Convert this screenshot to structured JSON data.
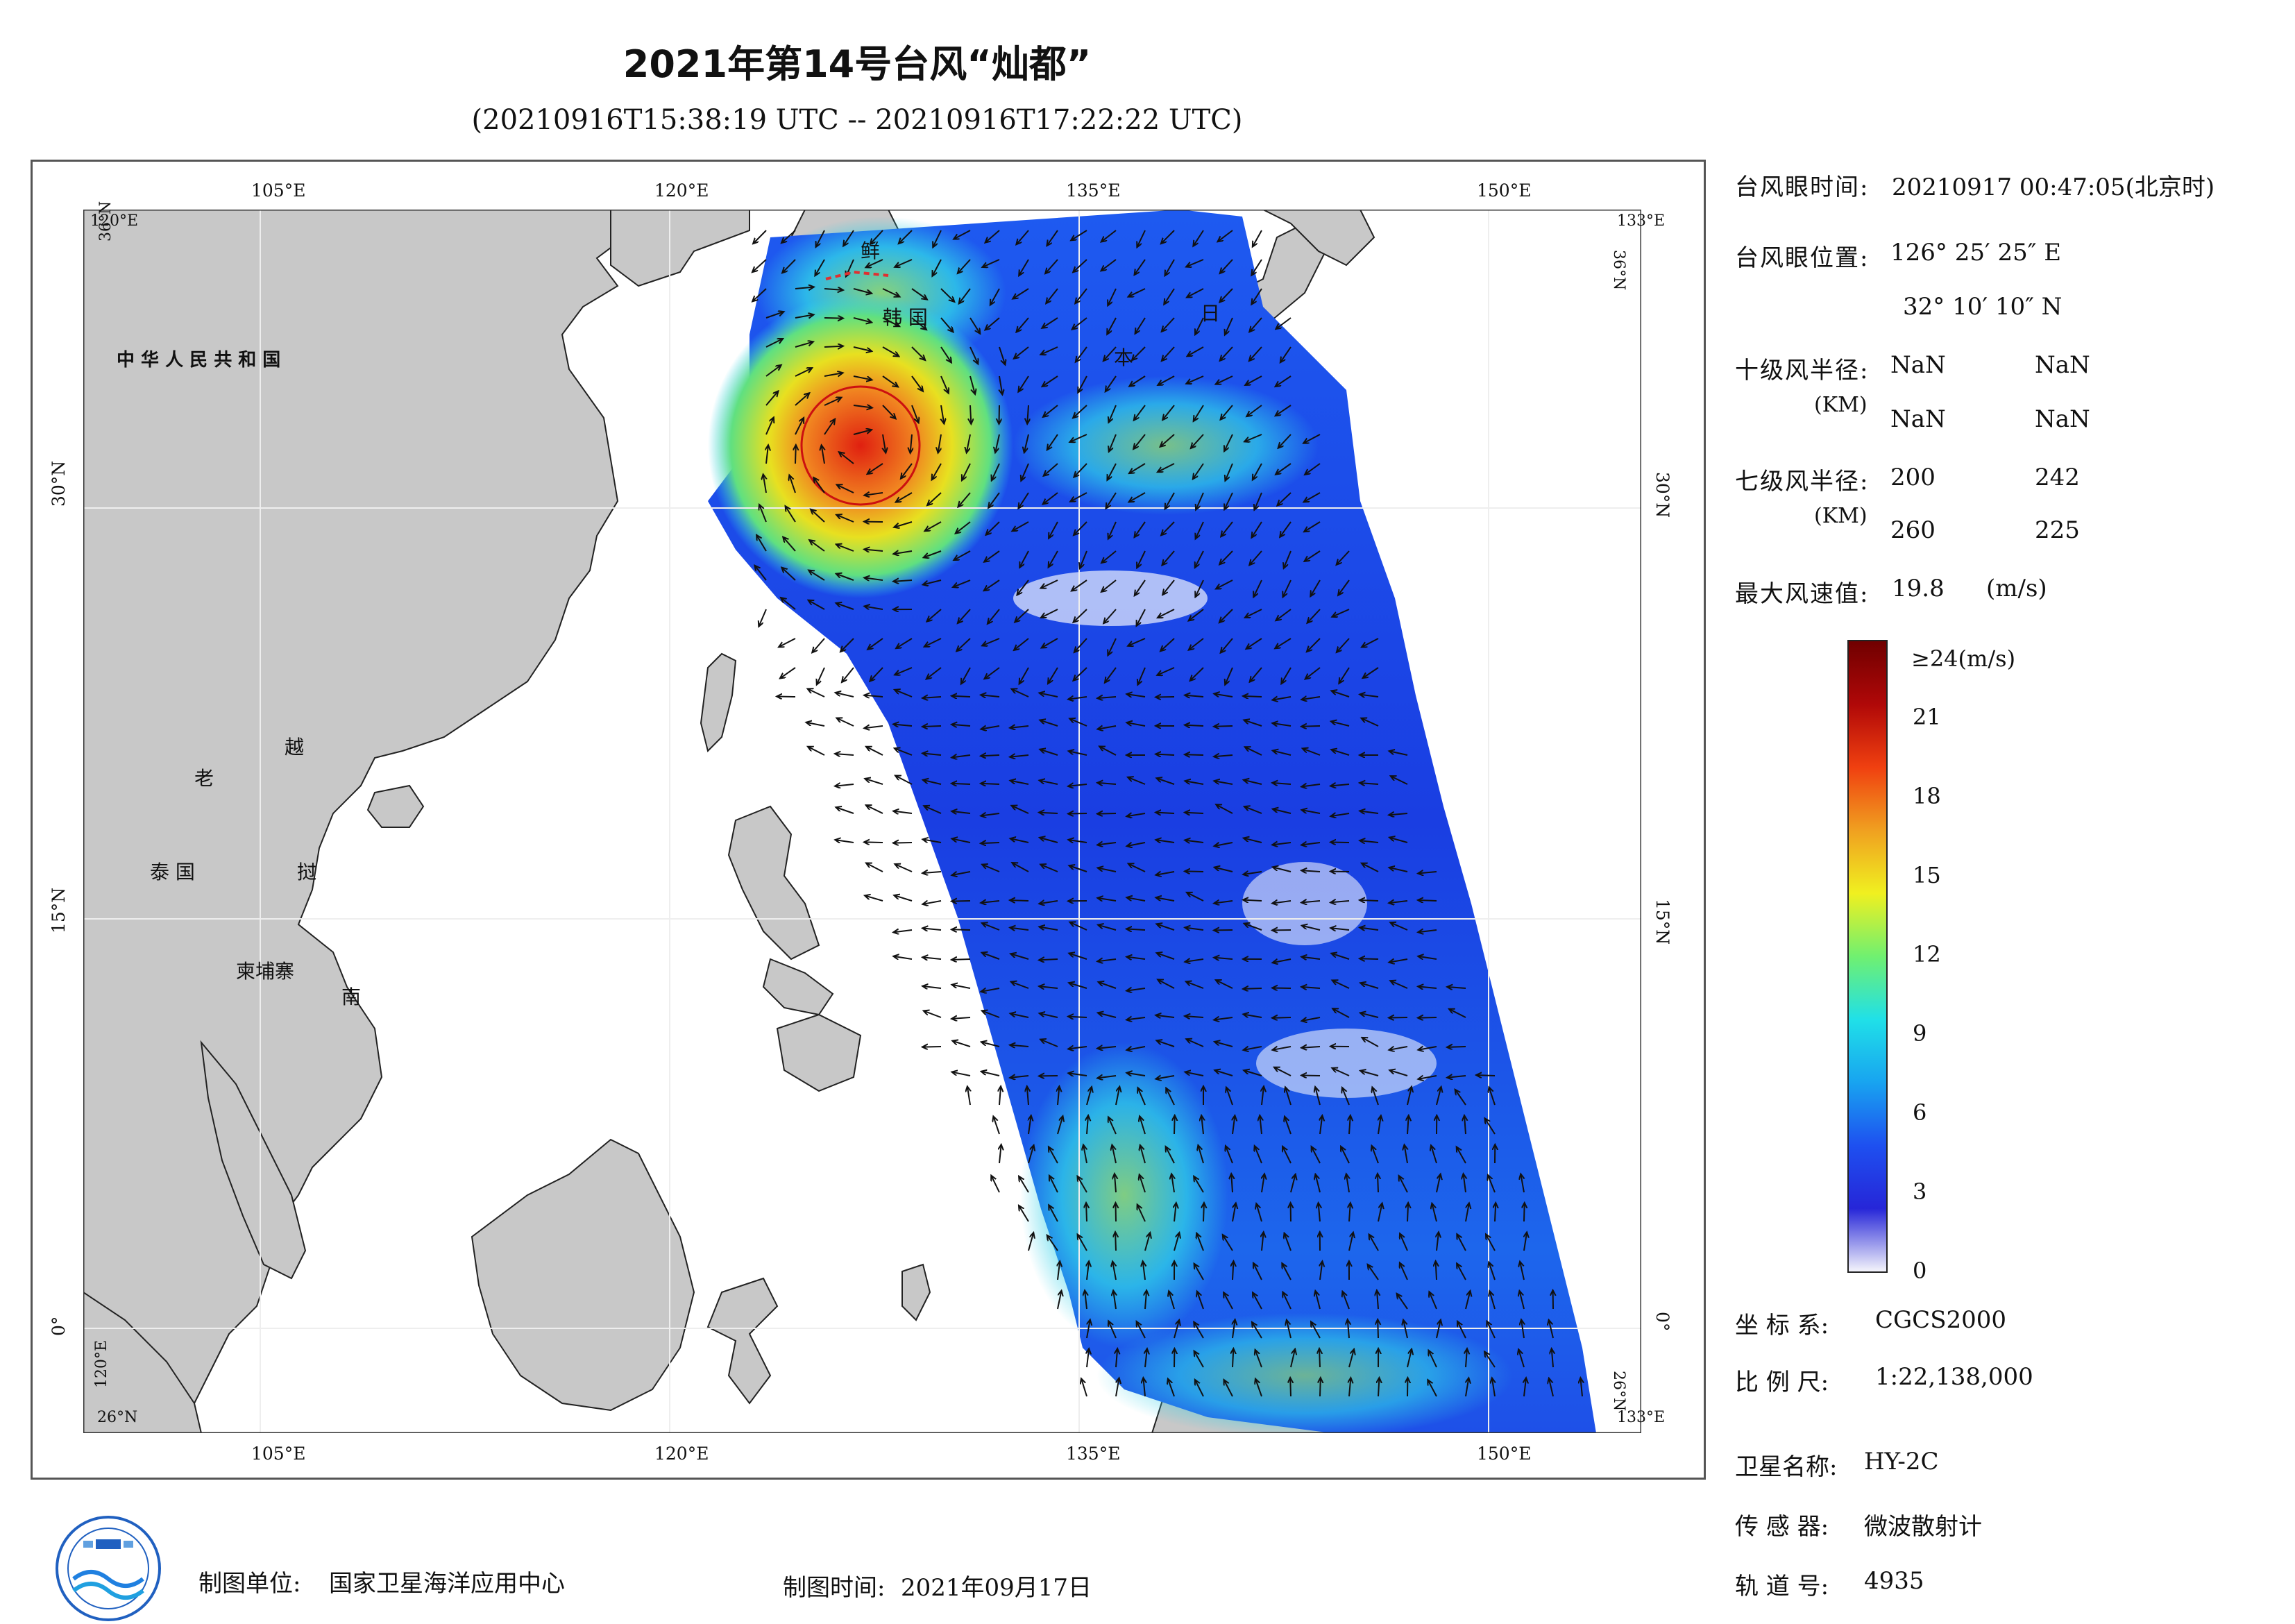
{
  "header": {
    "title": "2021年第14号台风“灿都”",
    "subtitle": "(20210916T15:38:19 UTC -- 20210916T17:22:22 UTC)"
  },
  "map": {
    "lon_top": [
      "105°E",
      "120°E",
      "135°E",
      "150°E"
    ],
    "lon_bottom": [
      "105°E",
      "120°E",
      "135°E",
      "150°E"
    ],
    "lat_left": [
      "30°N",
      "15°N",
      "0°"
    ],
    "lat_right": [
      "30°N",
      "15°N",
      "0°"
    ],
    "corner_labels": {
      "tl_lon": "120°E",
      "tl_lat": "36°N",
      "tr_lon": "133°E",
      "tr_lat": "36°N",
      "bl_lon": "120°E",
      "bl_lat": "26°N",
      "br_lon": "133°E",
      "br_lat": "26°N"
    },
    "place_names": {
      "china": "中 华 人 民 共 和 国",
      "korea_n": "鲜",
      "korea_s": "韩 国",
      "japan_1": "日",
      "japan_2": "本",
      "vietnam_1": "越",
      "vietnam_2": "南",
      "laos": "老",
      "thailand": "泰 国",
      "cambodia": "柬埔寨",
      "laos_2": "挝"
    },
    "typhoon_eye": {
      "lon": 126.42,
      "lat": 32.17
    },
    "colors": {
      "land": "#c8c8c8",
      "sea": "#ffffff",
      "swath_low": "#1438e0",
      "swath_high": "#d81010"
    }
  },
  "info": {
    "eye_time_label": "台风眼时间:",
    "eye_time_value": "20210917 00:47:05(北京时)",
    "eye_pos_label": "台风眼位置:",
    "eye_pos_lon": "126° 25′ 25″ E",
    "eye_pos_lat": "32° 10′ 10″ N",
    "r10_label": "十级风半径:",
    "r10_unit": "(KM)",
    "r10_values": [
      "NaN",
      "NaN",
      "NaN",
      "NaN"
    ],
    "r7_label": "七级风半径:",
    "r7_unit": "(KM)",
    "r7_values": [
      "200",
      "242",
      "260",
      "225"
    ],
    "max_wind_label": "最大风速值:",
    "max_wind_value": "19.8",
    "max_wind_unit": "(m/s)"
  },
  "colorbar": {
    "top_label": "≥24(m/s)",
    "ticks": [
      "21",
      "18",
      "15",
      "12",
      "9",
      "6",
      "3",
      "0"
    ],
    "unit": "(m/s)",
    "tick_values": [
      21,
      18,
      15,
      12,
      9,
      6,
      3,
      0
    ],
    "max": 24,
    "stops": [
      "#f4f4fb",
      "#2626d8",
      "#1e50f0",
      "#18a4f0",
      "#20e0e8",
      "#70f070",
      "#f0f020",
      "#f0a020",
      "#f04010",
      "#b00808",
      "#700000"
    ]
  },
  "meta": {
    "crs_label": "坐 标 系:",
    "crs_value": "CGCS2000",
    "scale_label": "比 例 尺:",
    "scale_value": "1:22,138,000",
    "sat_label": "卫星名称:",
    "sat_value": "HY-2C",
    "sensor_label": "传 感 器:",
    "sensor_value": "微波散射计",
    "orbit_label": "轨 道 号:",
    "orbit_value": "4935"
  },
  "footer": {
    "org_label": "制图单位:",
    "org_value": "国家卫星海洋应用中心",
    "date_label": "制图时间:",
    "date_value": "2021年09月17日"
  }
}
